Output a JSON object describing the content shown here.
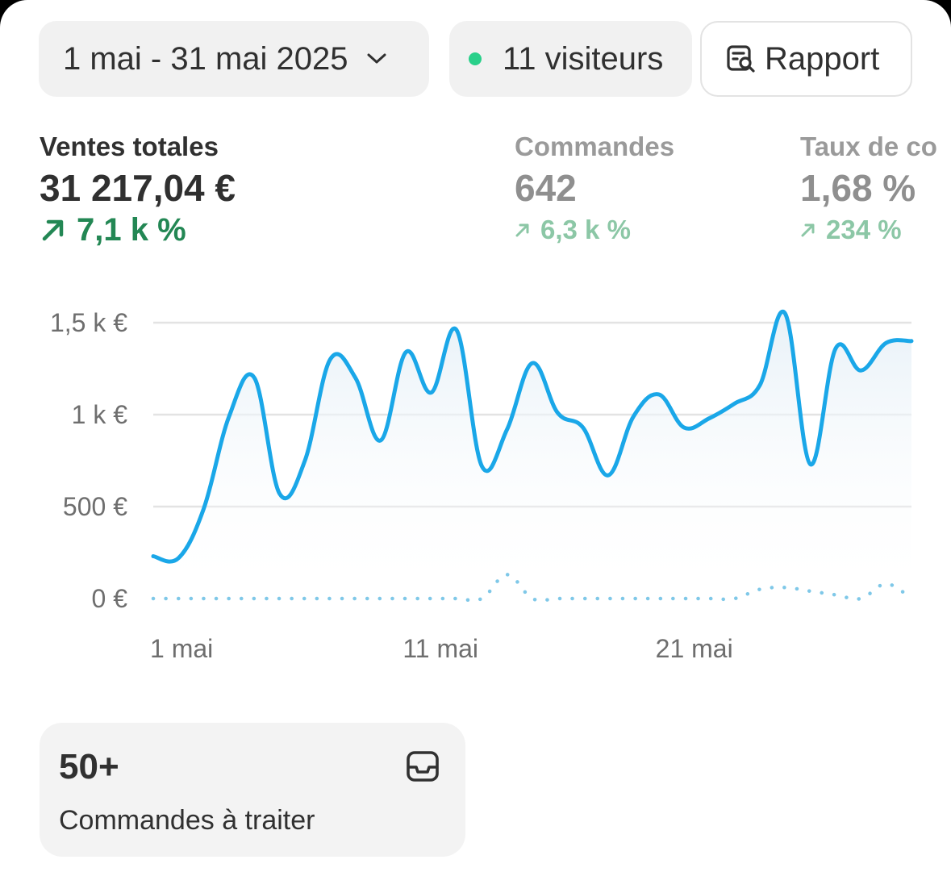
{
  "filters": {
    "date_range": "1 mai - 31 mai 2025",
    "visitors": "11 visiteurs",
    "report_label": "Rapport"
  },
  "metrics": [
    {
      "label": "Ventes totales",
      "value": "31 217,04 €",
      "delta": "7,1 k %"
    },
    {
      "label": "Commandes",
      "value": "642",
      "delta": "6,3 k %"
    },
    {
      "label": "Taux de co",
      "value": "1,68 %",
      "delta": "234 %"
    }
  ],
  "chart_data": {
    "type": "line",
    "x_start_label": "1 mai",
    "x": [
      "1 mai",
      "2 mai",
      "3 mai",
      "4 mai",
      "5 mai",
      "6 mai",
      "7 mai",
      "8 mai",
      "9 mai",
      "10 mai",
      "11 mai",
      "12 mai",
      "13 mai",
      "14 mai",
      "15 mai",
      "16 mai",
      "17 mai",
      "18 mai",
      "19 mai",
      "20 mai",
      "21 mai",
      "22 mai",
      "23 mai",
      "24 mai",
      "25 mai",
      "26 mai",
      "27 mai",
      "28 mai",
      "29 mai",
      "30 mai",
      "31 mai"
    ],
    "series": [
      {
        "style": "solid",
        "color": "#1aa7e8",
        "values": [
          230,
          220,
          490,
          990,
          1200,
          570,
          750,
          1300,
          1200,
          860,
          1340,
          1120,
          1460,
          720,
          920,
          1280,
          1010,
          930,
          670,
          990,
          1110,
          930,
          980,
          1060,
          1160,
          1550,
          730,
          1360,
          1240,
          1390,
          1400
        ]
      },
      {
        "style": "dotted",
        "color": "#7fc8e8",
        "values": [
          0,
          0,
          0,
          0,
          0,
          0,
          0,
          0,
          0,
          0,
          0,
          0,
          0,
          0,
          130,
          0,
          0,
          0,
          0,
          0,
          0,
          0,
          0,
          0,
          50,
          60,
          40,
          20,
          0,
          80,
          0
        ]
      }
    ],
    "y_ticks": [
      {
        "value": 0,
        "label": "0 €"
      },
      {
        "value": 500,
        "label": "500 €"
      },
      {
        "value": 1000,
        "label": "1 k €"
      },
      {
        "value": 1500,
        "label": "1,5 k €"
      }
    ],
    "x_ticks": [
      {
        "index": 0,
        "label": "1 mai"
      },
      {
        "index": 10,
        "label": "11 mai"
      },
      {
        "index": 20,
        "label": "21 mai"
      }
    ],
    "ylim": [
      0,
      1500
    ],
    "grid": true
  },
  "todo_card": {
    "count": "50+",
    "label": "Commandes à traiter"
  },
  "icons": {
    "date_chevron": "chevron-down-icon",
    "visitors_status": "live-dot-icon",
    "report": "report-search-icon",
    "delta": "arrow-up-right-icon",
    "todo": "inbox-icon"
  }
}
